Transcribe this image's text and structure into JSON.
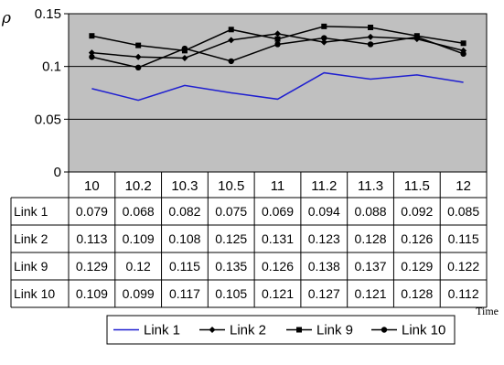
{
  "chart_data": {
    "type": "line",
    "ylabel": "ρ",
    "xlabel": "Time",
    "ylim": [
      0,
      0.15
    ],
    "y_ticks": [
      "0",
      "0.05",
      "0.1",
      "0.15"
    ],
    "grid": true,
    "legend_position": "bottom",
    "categories": [
      "10",
      "10.2",
      "10.3",
      "10.5",
      "11",
      "11.2",
      "11.3",
      "11.5",
      "12"
    ],
    "series": [
      {
        "name": "Link 1",
        "color": "#1f1fd0",
        "marker": "none",
        "values": [
          0.079,
          0.068,
          0.082,
          0.075,
          0.069,
          0.094,
          0.088,
          0.092,
          0.085
        ],
        "labels": [
          "0.079",
          "0.068",
          "0.082",
          "0.075",
          "0.069",
          "0.094",
          "0.088",
          "0.092",
          "0.085"
        ]
      },
      {
        "name": "Link 2",
        "color": "#000000",
        "marker": "diamond",
        "values": [
          0.113,
          0.109,
          0.108,
          0.125,
          0.131,
          0.123,
          0.128,
          0.126,
          0.115
        ],
        "labels": [
          "0.113",
          "0.109",
          "0.108",
          "0.125",
          "0.131",
          "0.123",
          "0.128",
          "0.126",
          "0.115"
        ]
      },
      {
        "name": "Link 9",
        "color": "#000000",
        "marker": "square",
        "values": [
          0.129,
          0.12,
          0.115,
          0.135,
          0.126,
          0.138,
          0.137,
          0.129,
          0.122
        ],
        "labels": [
          "0.129",
          "0.12",
          "0.115",
          "0.135",
          "0.126",
          "0.138",
          "0.137",
          "0.129",
          "0.122"
        ]
      },
      {
        "name": "Link 10",
        "color": "#000000",
        "marker": "circle",
        "values": [
          0.109,
          0.099,
          0.117,
          0.105,
          0.121,
          0.127,
          0.121,
          0.128,
          0.112
        ],
        "labels": [
          "0.109",
          "0.099",
          "0.117",
          "0.105",
          "0.121",
          "0.127",
          "0.121",
          "0.128",
          "0.112"
        ]
      }
    ]
  },
  "colors": {
    "plot_area": "#c0c0c0",
    "gridline": "#000000",
    "border": "#000000"
  }
}
